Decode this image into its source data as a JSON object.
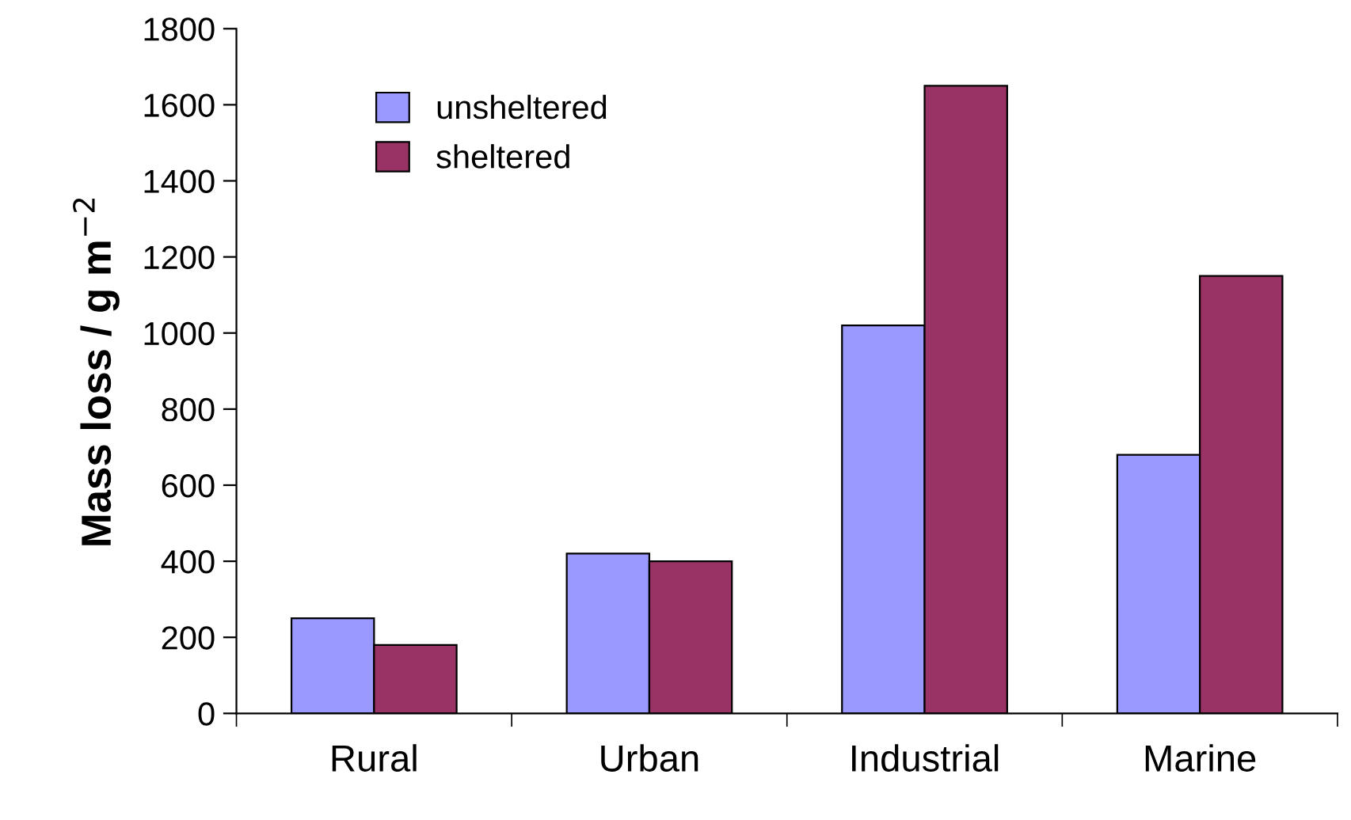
{
  "chart_data": {
    "type": "bar",
    "ylabel": "Mass loss / g m$^{−2}$",
    "categories": [
      "Rural",
      "Urban",
      "Industrial",
      "Marine"
    ],
    "series": [
      {
        "name": "unsheltered",
        "color": "#9999ff",
        "values": [
          250,
          420,
          1020,
          680
        ]
      },
      {
        "name": "sheltered",
        "color": "#993366",
        "values": [
          180,
          400,
          1650,
          1150
        ]
      }
    ],
    "ylim": [
      0,
      1800
    ],
    "yticks": [
      0,
      200,
      400,
      600,
      800,
      1000,
      1200,
      1400,
      1600,
      1800
    ],
    "grid": false,
    "legend": "top left"
  }
}
